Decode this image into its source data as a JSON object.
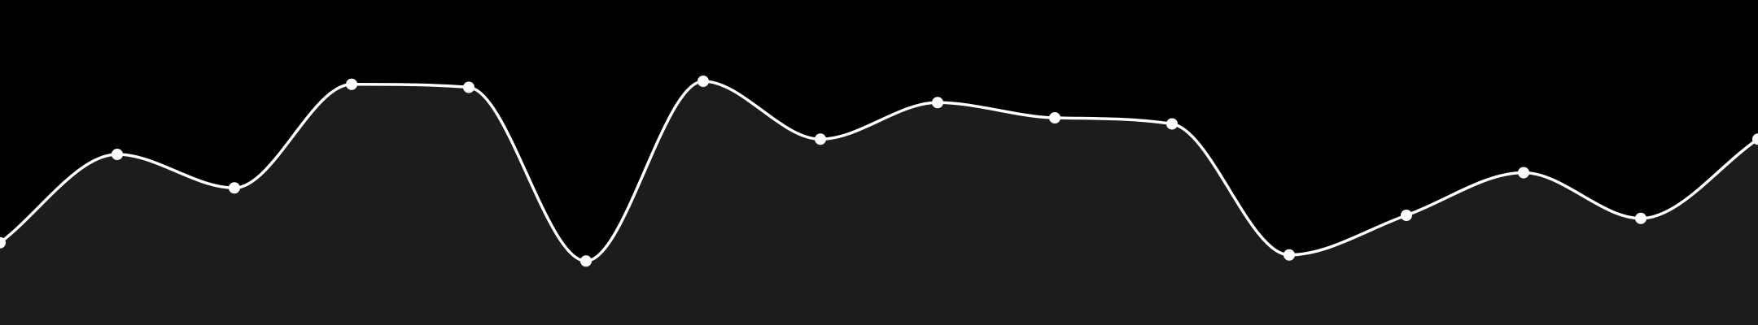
{
  "chart_data": {
    "type": "area",
    "curve": "smooth",
    "grid": false,
    "legend": "none",
    "x": [
      0,
      1,
      2,
      3,
      4,
      5,
      6,
      7,
      8,
      9,
      10,
      11,
      12,
      13,
      14,
      15
    ],
    "ylim": [
      0,
      100
    ],
    "series": [
      {
        "values": [
          27,
          56,
          45,
          79,
          78,
          21,
          80,
          61,
          73,
          68,
          66,
          23,
          36,
          50,
          35,
          61
        ],
        "line_color": "#ffffff",
        "fill_color": "#1c1c1c",
        "marker_color": "#ffffff"
      }
    ],
    "background_color": "#000000"
  }
}
